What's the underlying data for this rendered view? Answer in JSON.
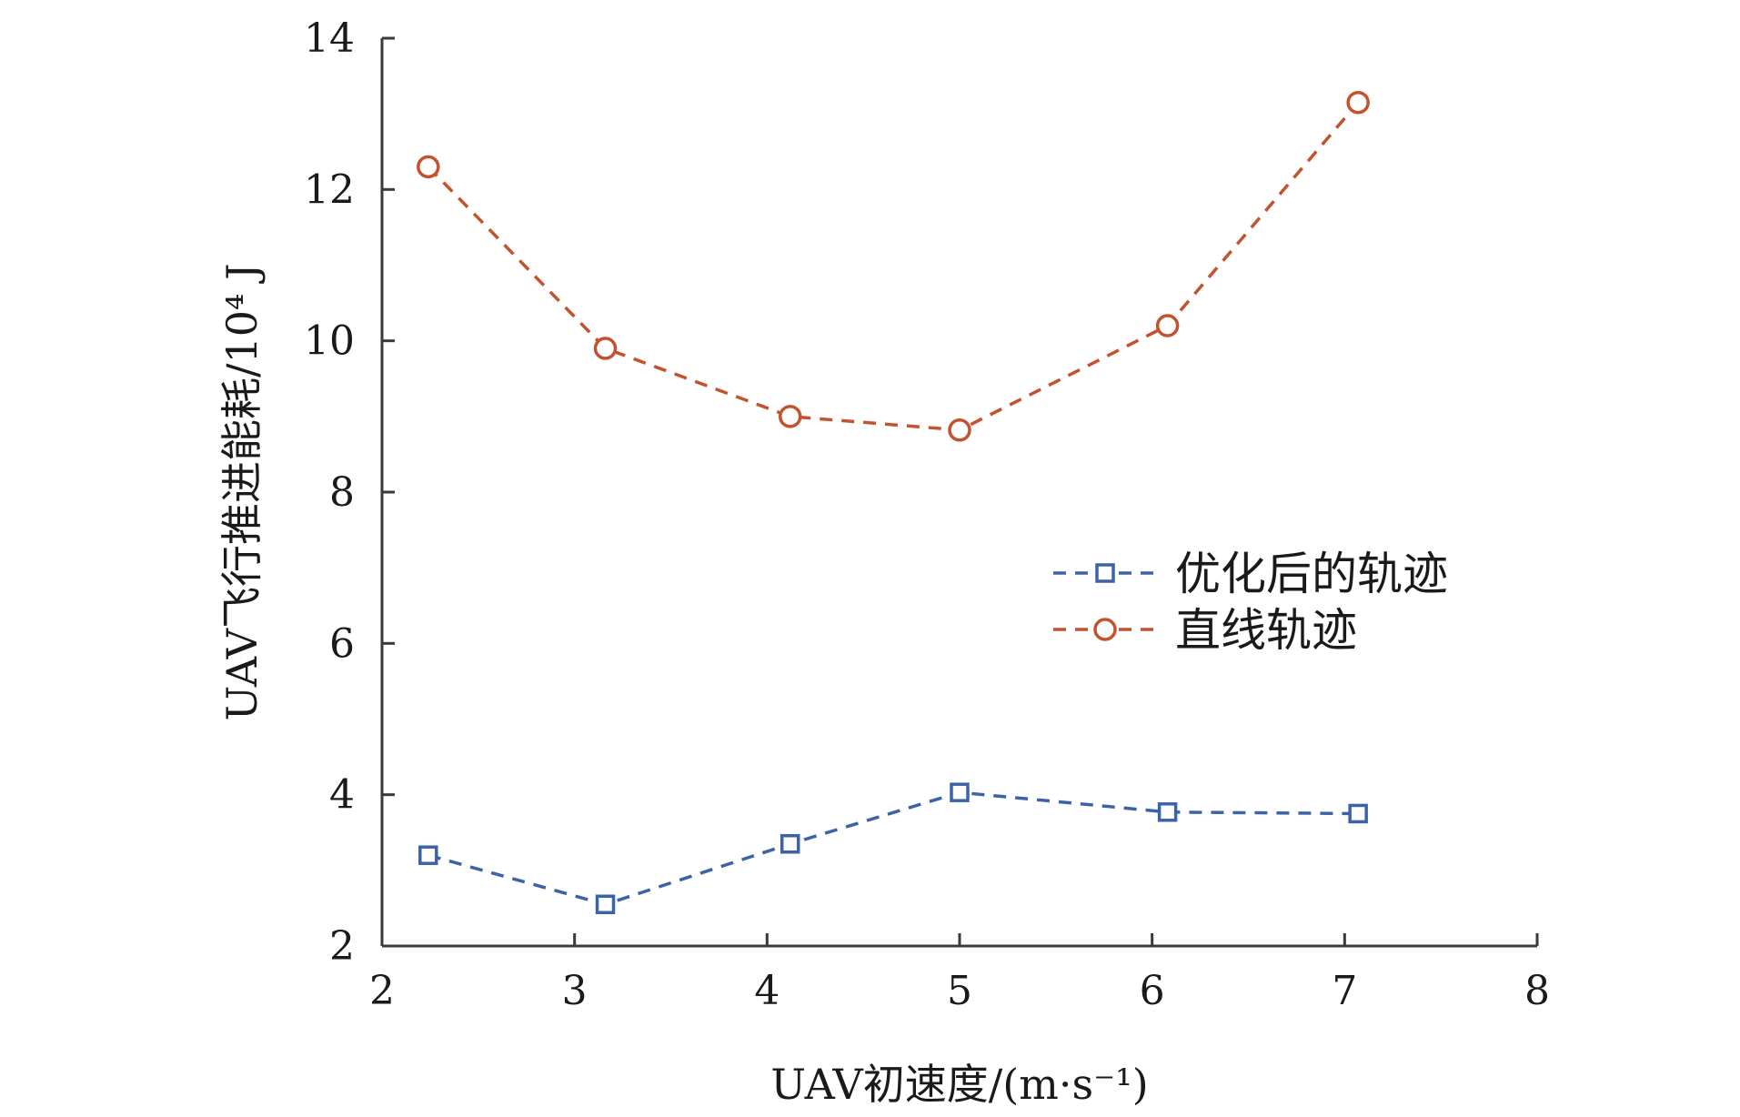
{
  "chart_data": {
    "type": "line",
    "title": "",
    "xlabel": "UAV初速度/(m·s⁻¹)",
    "ylabel": "UAV飞行推进能耗/10⁴ J",
    "xlim": [
      2,
      8
    ],
    "ylim": [
      2,
      14
    ],
    "xticks": [
      "2",
      "3",
      "4",
      "5",
      "6",
      "7",
      "8"
    ],
    "yticks": [
      "2",
      "4",
      "6",
      "8",
      "10",
      "12",
      "14"
    ],
    "grid": false,
    "legend_position": "center-right",
    "series": [
      {
        "name": "优化后的轨迹",
        "marker": "square",
        "line_style": "dashed",
        "color": "#3c63a6",
        "x": [
          2.24,
          3.16,
          4.12,
          5.0,
          6.08,
          7.07
        ],
        "values": [
          3.2,
          2.55,
          3.35,
          4.03,
          3.77,
          3.75
        ]
      },
      {
        "name": "直线轨迹",
        "marker": "circle",
        "line_style": "dashed",
        "color": "#c4522e",
        "x": [
          2.24,
          3.16,
          4.12,
          5.0,
          6.08,
          7.07
        ],
        "values": [
          12.3,
          9.9,
          9.0,
          8.82,
          10.2,
          13.15
        ]
      }
    ]
  }
}
